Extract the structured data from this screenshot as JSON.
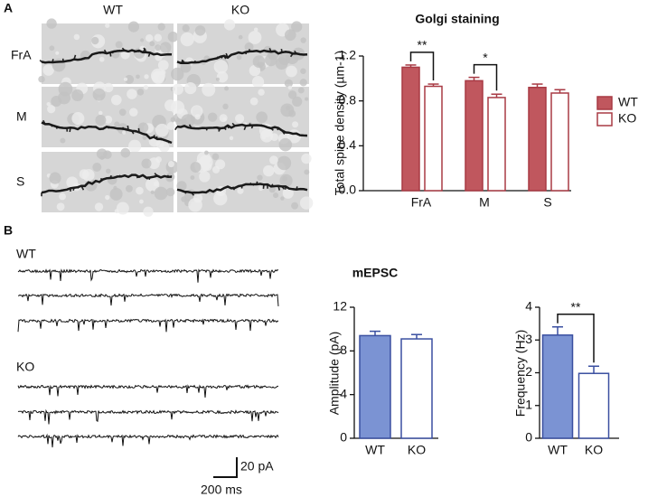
{
  "panel_labels": [
    "A",
    "B"
  ],
  "micrographs": {
    "columns": [
      "WT",
      "KO"
    ],
    "rows": [
      "FrA",
      "M",
      "S"
    ]
  },
  "traces": {
    "groups": [
      "WT",
      "KO"
    ],
    "scale_bar": {
      "y": "20 pA",
      "x": "200 ms"
    }
  },
  "chart_data": [
    {
      "type": "bar",
      "title": "Golgi staining",
      "ylabel": "Total spine density (µm-1)",
      "categories": [
        "FrA",
        "M",
        "S"
      ],
      "series": [
        {
          "name": "WT",
          "color": "#c0575e",
          "values": [
            1.1,
            0.98,
            0.92
          ],
          "errors": [
            0.02,
            0.03,
            0.03
          ]
        },
        {
          "name": "KO",
          "color": "#ffffff",
          "values": [
            0.93,
            0.83,
            0.87
          ],
          "errors": [
            0.02,
            0.03,
            0.03
          ]
        }
      ],
      "edgecolor": "#a83a44",
      "significance": [
        "**",
        "*",
        null
      ],
      "ylim": [
        0,
        1.2
      ],
      "yticks": [
        {
          "value": 0,
          "label": "0.0"
        },
        0.4,
        0.8,
        1.2
      ],
      "legend": "right"
    },
    {
      "type": "bar",
      "title": "mEPSC",
      "ylabel": "Amplitude (pA)",
      "categories": [
        "WT",
        "KO"
      ],
      "values": [
        9.4,
        9.1
      ],
      "errors": [
        0.4,
        0.4
      ],
      "colors": [
        "#7b93d3",
        "#ffffff"
      ],
      "edgecolor": "#3a4fa0",
      "ylim": [
        0,
        12
      ],
      "yticks": [
        0,
        4,
        8,
        12
      ]
    },
    {
      "type": "bar",
      "ylabel": "Frequency (Hz)",
      "categories": [
        "WT",
        "KO"
      ],
      "values": [
        3.15,
        1.98
      ],
      "errors": [
        0.25,
        0.22
      ],
      "colors": [
        "#7b93d3",
        "#ffffff"
      ],
      "edgecolor": "#3a4fa0",
      "significance": "**",
      "ylim": [
        0,
        4
      ],
      "yticks": [
        0,
        1,
        2,
        3,
        4
      ]
    }
  ]
}
